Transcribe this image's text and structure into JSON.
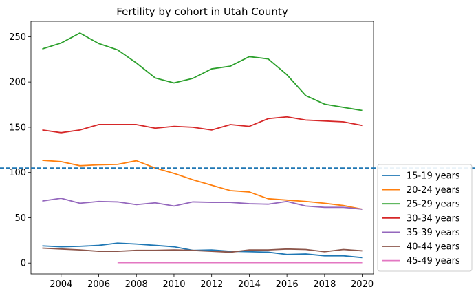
{
  "chart_data": {
    "type": "line",
    "title": "Fertility by cohort in Utah County",
    "xlabel": "",
    "ylabel": "",
    "xlim": [
      2002.4,
      2020.6
    ],
    "ylim": [
      -12,
      267
    ],
    "xticks": [
      2004,
      2006,
      2008,
      2010,
      2012,
      2014,
      2016,
      2018,
      2020
    ],
    "xtick_labels": [
      "2004",
      "2006",
      "2008",
      "2010",
      "2012",
      "2014",
      "2016",
      "2018",
      "2020"
    ],
    "yticks": [
      0,
      50,
      100,
      150,
      200,
      250
    ],
    "ytick_labels": [
      "0",
      "50",
      "100",
      "150",
      "200",
      "250"
    ],
    "grid": false,
    "legend_position": "outside-right-bottom",
    "reference_line": {
      "y": 105,
      "style": "dashed",
      "color": "#1f77b4"
    },
    "series": [
      {
        "name": "15-19 years",
        "color": "#1f77b4",
        "x": [
          2003,
          2004,
          2005,
          2006,
          2007,
          2008,
          2009,
          2010,
          2011,
          2012,
          2013,
          2014,
          2015,
          2016,
          2017,
          2018,
          2019,
          2020
        ],
        "values": [
          19,
          18,
          18.5,
          19.5,
          22,
          21,
          19.5,
          18,
          14,
          14.5,
          13,
          12.5,
          12,
          9.5,
          10,
          8,
          8,
          6
        ]
      },
      {
        "name": "20-24 years",
        "color": "#ff7f0e",
        "x": [
          2003,
          2004,
          2005,
          2006,
          2007,
          2008,
          2009,
          2010,
          2011,
          2012,
          2013,
          2014,
          2015,
          2016,
          2017,
          2018,
          2019,
          2020
        ],
        "values": [
          113.5,
          112,
          107.5,
          108.5,
          109,
          113,
          105,
          99,
          92,
          86,
          80,
          78.5,
          71,
          69.5,
          68,
          66,
          63.5,
          59.5
        ]
      },
      {
        "name": "25-29 years",
        "color": "#2ca02c",
        "x": [
          2003,
          2004,
          2005,
          2006,
          2007,
          2008,
          2009,
          2010,
          2011,
          2012,
          2013,
          2014,
          2015,
          2016,
          2017,
          2018,
          2019,
          2020
        ],
        "values": [
          236.5,
          243,
          254,
          242.5,
          235.5,
          221,
          204.5,
          199,
          204,
          214.5,
          217.5,
          228,
          225.5,
          208,
          185,
          175.5,
          172,
          168.5
        ]
      },
      {
        "name": "30-34 years",
        "color": "#d62728",
        "x": [
          2003,
          2004,
          2005,
          2006,
          2007,
          2008,
          2009,
          2010,
          2011,
          2012,
          2013,
          2014,
          2015,
          2016,
          2017,
          2018,
          2019,
          2020
        ],
        "values": [
          147,
          144,
          147,
          153,
          153,
          153,
          149,
          151,
          150,
          147,
          153,
          151,
          159.5,
          161.5,
          158,
          157,
          156,
          152
        ]
      },
      {
        "name": "35-39 years",
        "color": "#9467bd",
        "x": [
          2003,
          2004,
          2005,
          2006,
          2007,
          2008,
          2009,
          2010,
          2011,
          2012,
          2013,
          2014,
          2015,
          2016,
          2017,
          2018,
          2019,
          2020
        ],
        "values": [
          68.5,
          71.5,
          66,
          68,
          67.5,
          64.5,
          66.5,
          63,
          67.5,
          67,
          67,
          65.5,
          65,
          68,
          63,
          61.5,
          61.5,
          59.5
        ]
      },
      {
        "name": "40-44 years",
        "color": "#8c564b",
        "x": [
          2003,
          2004,
          2005,
          2006,
          2007,
          2008,
          2009,
          2010,
          2011,
          2012,
          2013,
          2014,
          2015,
          2016,
          2017,
          2018,
          2019,
          2020
        ],
        "values": [
          16.5,
          15.5,
          14.5,
          13,
          13,
          14,
          14,
          14.5,
          14,
          13,
          12,
          14.5,
          14.5,
          15.5,
          15,
          12.5,
          15,
          13.5
        ]
      },
      {
        "name": "45-49 years",
        "color": "#e377c2",
        "x": [
          2007,
          2008,
          2009,
          2010,
          2011,
          2012,
          2013,
          2014,
          2015,
          2016,
          2017,
          2018,
          2019,
          2020
        ],
        "values": [
          0.5,
          0.5,
          0.5,
          0.5,
          0.5,
          0.5,
          0.5,
          0.5,
          0.5,
          0.5,
          0.5,
          0.5,
          0.5,
          0.5
        ]
      }
    ]
  }
}
